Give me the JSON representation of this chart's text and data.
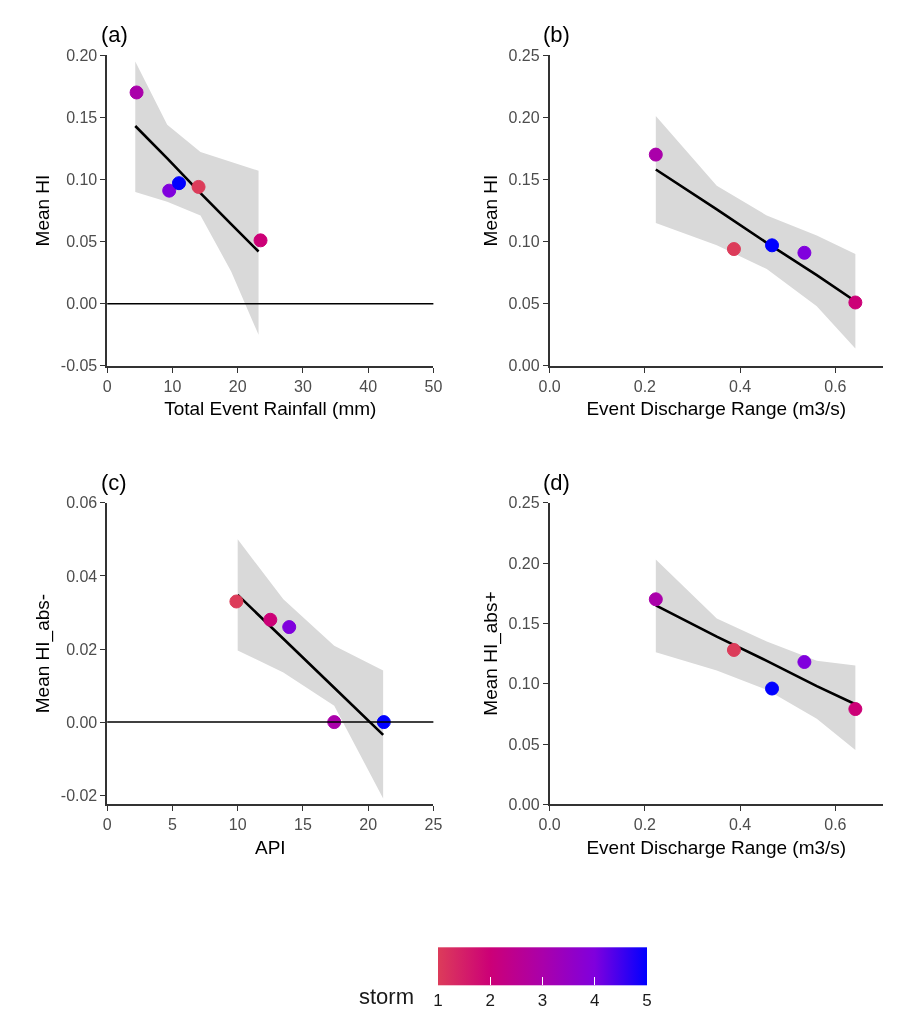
{
  "chart_data": [
    {
      "type": "scatter",
      "title": "(a)",
      "xlabel": "Total Event Rainfall (mm)",
      "ylabel": "Mean HI",
      "xlim": [
        0,
        50
      ],
      "xticks": [
        0,
        10,
        20,
        30,
        40,
        50
      ],
      "ylim": [
        -0.05,
        0.2
      ],
      "yticks": [
        {
          "value": -0.05,
          "label": "-0.05"
        },
        {
          "value": 0,
          "label": "0.00"
        },
        {
          "value": 0.05,
          "label": "0.05"
        },
        {
          "value": 0.1,
          "label": "0.10"
        },
        {
          "value": 0.15,
          "label": "0.15"
        },
        {
          "value": 0.2,
          "label": "0.20"
        }
      ],
      "ref_lines": [
        {
          "axis": "y",
          "value": 0,
          "color": "#000000"
        }
      ],
      "series": [
        {
          "type": "line",
          "color": "#000000",
          "x": [
            4.3,
            9.2,
            14.3,
            19,
            23.2
          ],
          "values": [
            0.143,
            0.117,
            0.089,
            0.064,
            0.042
          ],
          "lower": [
            0.09,
            0.082,
            0.071,
            0.026,
            -0.025
          ],
          "upper": [
            0.195,
            0.144,
            0.122,
            0.114,
            0.107
          ]
        },
        {
          "marker": "circle",
          "x": [
            4.5,
            9.5,
            11,
            14,
            23.5
          ],
          "values": [
            0.17,
            0.091,
            0.097,
            0.094,
            0.051
          ],
          "colors": [
            "#aa00aa",
            "#8000dd",
            "#0000ff",
            "#dc3c5a",
            "#cc0077"
          ]
        }
      ]
    },
    {
      "type": "scatter",
      "title": "(b)",
      "xlabel": "Event Discharge Range (m3/s)",
      "ylabel": "Mean HI",
      "xlim": [
        0,
        0.7
      ],
      "xticks": [
        {
          "value": 0,
          "label": "0.0"
        },
        {
          "value": 0.2,
          "label": "0.2"
        },
        {
          "value": 0.4,
          "label": "0.4"
        },
        {
          "value": 0.6,
          "label": "0.6"
        }
      ],
      "ylim": [
        0,
        0.25
      ],
      "yticks": [
        {
          "value": 0,
          "label": "0.00"
        },
        {
          "value": 0.05,
          "label": "0.05"
        },
        {
          "value": 0.1,
          "label": "0.10"
        },
        {
          "value": 0.15,
          "label": "0.15"
        },
        {
          "value": 0.2,
          "label": "0.20"
        },
        {
          "value": 0.25,
          "label": "0.25"
        }
      ],
      "series": [
        {
          "type": "line",
          "color": "#000000",
          "x": [
            0.223,
            0.351,
            0.456,
            0.561,
            0.642
          ],
          "values": [
            0.158,
            0.126,
            0.099,
            0.073,
            0.052
          ],
          "lower": [
            0.115,
            0.097,
            0.078,
            0.048,
            0.014
          ],
          "upper": [
            0.201,
            0.145,
            0.121,
            0.105,
            0.09
          ]
        },
        {
          "marker": "circle",
          "x": [
            0.223,
            0.387,
            0.467,
            0.535,
            0.642
          ],
          "values": [
            0.17,
            0.094,
            0.097,
            0.091,
            0.051
          ],
          "colors": [
            "#aa00aa",
            "#dc3c5a",
            "#0000ff",
            "#8000dd",
            "#cc0077"
          ]
        }
      ]
    },
    {
      "type": "scatter",
      "title": "(c)",
      "xlabel": "API",
      "ylabel": "Mean HI_abs-",
      "xlim": [
        0,
        25
      ],
      "xticks": [
        0,
        5,
        10,
        15,
        20,
        25
      ],
      "ylim": [
        -0.0225,
        0.06
      ],
      "yticks": [
        {
          "value": -0.02,
          "label": "-0.02"
        },
        {
          "value": 0,
          "label": "0.00"
        },
        {
          "value": 0.02,
          "label": "0.02"
        },
        {
          "value": 0.04,
          "label": "0.04"
        },
        {
          "value": 0.06,
          "label": "0.06"
        }
      ],
      "ref_lines": [
        {
          "axis": "y",
          "value": 0,
          "color": "#000000"
        }
      ],
      "series": [
        {
          "type": "line",
          "color": "#000000",
          "x": [
            10,
            13.5,
            17.4,
            21.15
          ],
          "values": [
            0.0348,
            0.0228,
            0.0094,
            -0.0035
          ],
          "lower": [
            0.0196,
            0.0136,
            0.0045,
            -0.0209
          ],
          "upper": [
            0.05,
            0.0336,
            0.0209,
            0.0141
          ]
        },
        {
          "marker": "circle",
          "x": [
            9.9,
            12.5,
            13.95,
            17.4,
            21.2
          ],
          "values": [
            0.033,
            0.028,
            0.026,
            0.0,
            0.0
          ],
          "colors": [
            "#dc3c5a",
            "#cc0077",
            "#8000dd",
            "#aa00aa",
            "#0000ff"
          ]
        }
      ]
    },
    {
      "type": "scatter",
      "title": "(d)",
      "xlabel": "Event Discharge Range (m3/s)",
      "ylabel": "Mean HI_abs+",
      "xlim": [
        0,
        0.7
      ],
      "xticks": [
        {
          "value": 0,
          "label": "0.0"
        },
        {
          "value": 0.2,
          "label": "0.2"
        },
        {
          "value": 0.4,
          "label": "0.4"
        },
        {
          "value": 0.6,
          "label": "0.6"
        }
      ],
      "ylim": [
        0,
        0.25
      ],
      "yticks": [
        {
          "value": 0,
          "label": "0.00"
        },
        {
          "value": 0.05,
          "label": "0.05"
        },
        {
          "value": 0.1,
          "label": "0.10"
        },
        {
          "value": 0.15,
          "label": "0.15"
        },
        {
          "value": 0.2,
          "label": "0.20"
        },
        {
          "value": 0.25,
          "label": "0.25"
        }
      ],
      "clabel": "storm",
      "clim": [
        1,
        5
      ],
      "cticks": [
        1,
        2,
        3,
        4,
        5
      ],
      "series": [
        {
          "type": "line",
          "color": "#000000",
          "x": [
            0.223,
            0.351,
            0.456,
            0.561,
            0.642
          ],
          "values": [
            0.165,
            0.139,
            0.119,
            0.098,
            0.083
          ],
          "lower": [
            0.126,
            0.111,
            0.095,
            0.071,
            0.045
          ],
          "upper": [
            0.203,
            0.154,
            0.135,
            0.119,
            0.115
          ]
        },
        {
          "marker": "circle",
          "x": [
            0.223,
            0.387,
            0.467,
            0.535,
            0.642
          ],
          "values": [
            0.17,
            0.128,
            0.096,
            0.118,
            0.079
          ],
          "cvalues": [
            3,
            1,
            5,
            4,
            2
          ],
          "colors": [
            "#aa00aa",
            "#dc3c5a",
            "#0000ff",
            "#8000dd",
            "#cc0077"
          ]
        }
      ]
    }
  ]
}
